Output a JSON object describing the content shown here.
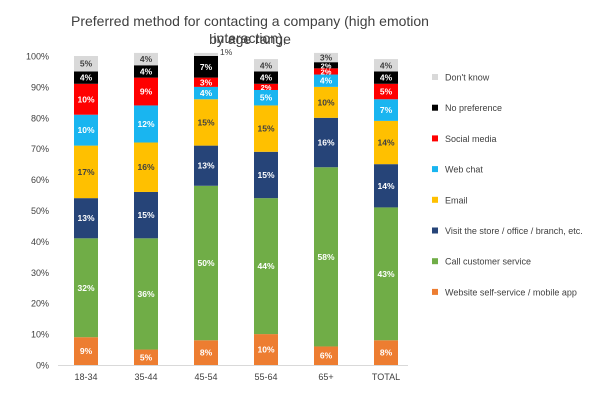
{
  "chart_data": {
    "type": "stacked-bar-100",
    "title_lines": [
      "Preferred method for contacting a company (high emotion interaction),",
      "by age range"
    ],
    "categories": [
      "18-34",
      "35-44",
      "45-54",
      "55-64",
      "65+",
      "TOTAL"
    ],
    "ylim": [
      0,
      100
    ],
    "yticks": [
      "0%",
      "10%",
      "20%",
      "30%",
      "40%",
      "50%",
      "60%",
      "70%",
      "80%",
      "90%",
      "100%"
    ],
    "series": [
      {
        "name": "Website self-service / mobile app",
        "color": "#ED7D31",
        "values": [
          9,
          5,
          8,
          10,
          6,
          8
        ]
      },
      {
        "name": "Call customer service",
        "color": "#70AD47",
        "values": [
          32,
          36,
          50,
          44,
          58,
          43
        ]
      },
      {
        "name": "Visit the store / office / branch, etc.",
        "color": "#264478",
        "values": [
          13,
          15,
          13,
          15,
          16,
          14
        ]
      },
      {
        "name": "Email",
        "color": "#FFC000",
        "values": [
          17,
          16,
          15,
          15,
          10,
          14
        ]
      },
      {
        "name": "Web chat",
        "color": "#19B5F0",
        "values": [
          10,
          12,
          4,
          5,
          4,
          7
        ]
      },
      {
        "name": "Social media",
        "color": "#FF0000",
        "values": [
          10,
          9,
          3,
          2,
          2,
          5
        ]
      },
      {
        "name": "No preference",
        "color": "#000000",
        "values": [
          4,
          4,
          7,
          4,
          2,
          4
        ]
      },
      {
        "name": "Don't know",
        "color": "#D9D9D9",
        "values": [
          5,
          4,
          1,
          4,
          3,
          4
        ]
      }
    ],
    "label_colors": {
      "Website self-service / mobile app": "#FFFFFF",
      "Call customer service": "#FFFFFF",
      "Visit the store / office / branch, etc.": "#FFFFFF",
      "Email": "#404040",
      "Web chat": "#FFFFFF",
      "Social media": "#FFFFFF",
      "No preference": "#FFFFFF",
      "Don't know": "#404040"
    },
    "legend_order": [
      "Don't know",
      "No preference",
      "Social media",
      "Web chat",
      "Email",
      "Visit the store / office / branch, etc.",
      "Call customer service",
      "Website self-service / mobile app"
    ],
    "legend_position": "right"
  }
}
